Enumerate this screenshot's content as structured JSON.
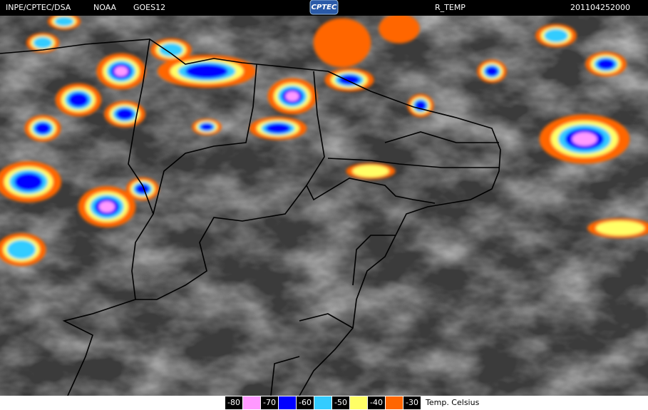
{
  "header": {
    "source": "INPE/CPTEC/DSA",
    "agency": "NOAA",
    "satellite": "GOES12",
    "logo": "CPTEC",
    "product": "R_TEMP",
    "timestamp": "201104252000"
  },
  "legend": {
    "labels": [
      "-80",
      "-70",
      "-60",
      "-50",
      "-40",
      "-30"
    ],
    "colors": [
      "#ff99ff",
      "#0000ff",
      "#33ccff",
      "#ffff66",
      "#ff6600"
    ],
    "unit": "Temp. Celsius"
  }
}
